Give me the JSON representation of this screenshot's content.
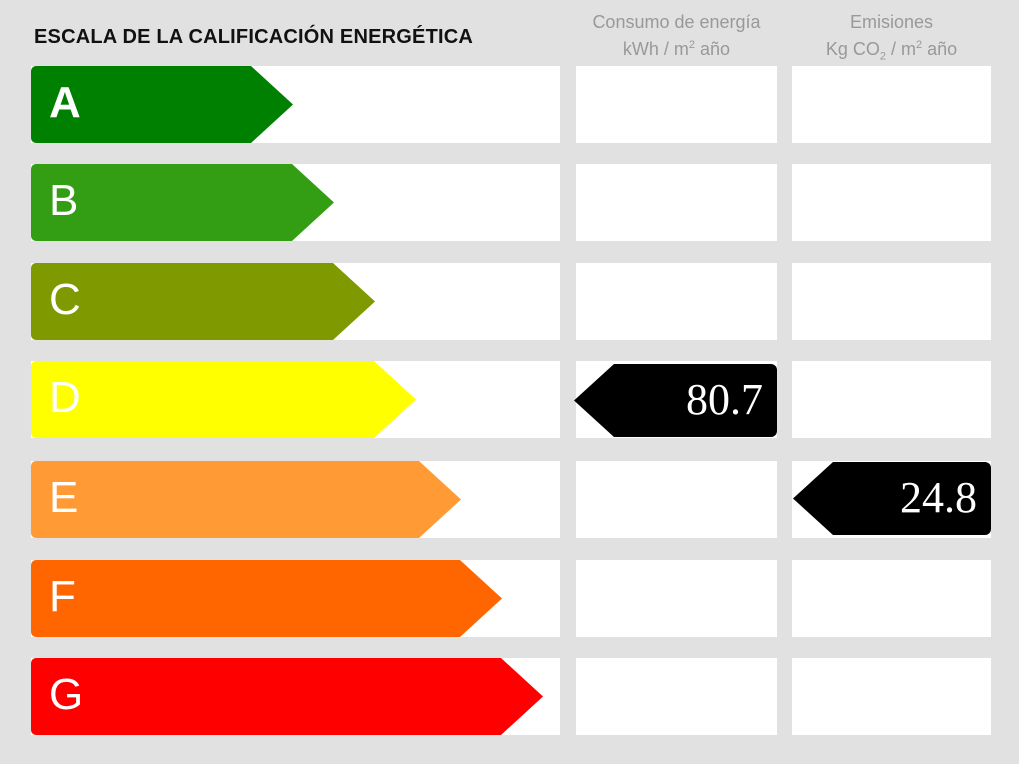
{
  "title": "ESCALA DE LA CALIFICACIÓN ENERGÉTICA",
  "columns": {
    "consumption": {
      "line1": "Consumo de energía",
      "unit_pre": "kWh / m",
      "unit_sup": "2",
      "unit_post": " año"
    },
    "emissions": {
      "line1": "Emisiones",
      "unit_pre": "Kg CO",
      "unit_sub": "2",
      "unit_mid": " / m",
      "unit_sup": "2",
      "unit_post": " año"
    }
  },
  "ratings": [
    {
      "letter": "A",
      "color": "#008000"
    },
    {
      "letter": "B",
      "color": "#339e13"
    },
    {
      "letter": "C",
      "color": "#7f9900"
    },
    {
      "letter": "D",
      "color": "#ffff00"
    },
    {
      "letter": "E",
      "color": "#ff9a35"
    },
    {
      "letter": "F",
      "color": "#ff6600"
    },
    {
      "letter": "G",
      "color": "#ff0000"
    }
  ],
  "consumption_indicator": {
    "value": "80.7",
    "rating": "D"
  },
  "emissions_indicator": {
    "value": "24.8",
    "rating": "E"
  }
}
